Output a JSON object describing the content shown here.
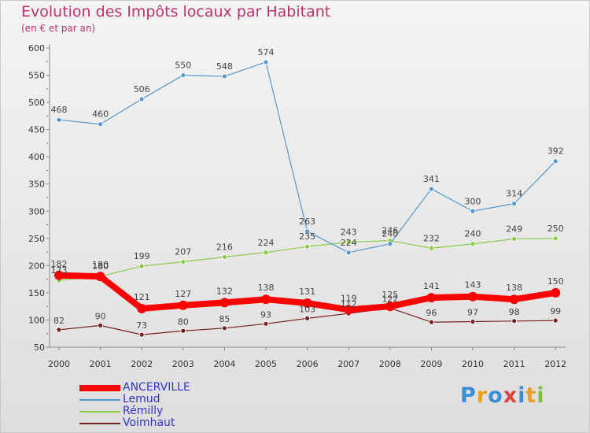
{
  "title": "Evolution des Impôts locaux par Habitant",
  "subtitle": "(en € et par an)",
  "logo": {
    "text": "Proxiti",
    "colors": [
      "#3a8fd6",
      "#e8a020",
      "#3a8fd6",
      "#e04040",
      "#3a8fd6",
      "#e8a020",
      "#7cc040"
    ]
  },
  "chart_data": {
    "type": "line",
    "x": [
      "2000",
      "2001",
      "2002",
      "2003",
      "2004",
      "2005",
      "2006",
      "2007",
      "2008",
      "2009",
      "2010",
      "2011",
      "2012"
    ],
    "ylim": [
      50,
      600
    ],
    "yticks": [
      50,
      100,
      150,
      200,
      250,
      300,
      350,
      400,
      450,
      500,
      550,
      600
    ],
    "grid": false,
    "legend_position": "bottom-left",
    "series": [
      {
        "name": "ANCERVILLE",
        "color": "#ff0000",
        "values": [
          182,
          180,
          121,
          127,
          132,
          138,
          131,
          119,
          125,
          141,
          143,
          138,
          150
        ]
      },
      {
        "name": "Lemud",
        "color": "#5599cc",
        "values": [
          468,
          460,
          506,
          550,
          548,
          574,
          263,
          224,
          240,
          341,
          300,
          314,
          392
        ]
      },
      {
        "name": "Rémilly",
        "color": "#88cc44",
        "values": [
          173,
          180,
          199,
          207,
          216,
          224,
          235,
          243,
          246,
          232,
          240,
          249,
          250
        ]
      },
      {
        "name": "Voimhaut",
        "color": "#772222",
        "values": [
          82,
          90,
          73,
          80,
          85,
          93,
          103,
          112,
          122,
          96,
          97,
          98,
          99
        ]
      }
    ]
  }
}
